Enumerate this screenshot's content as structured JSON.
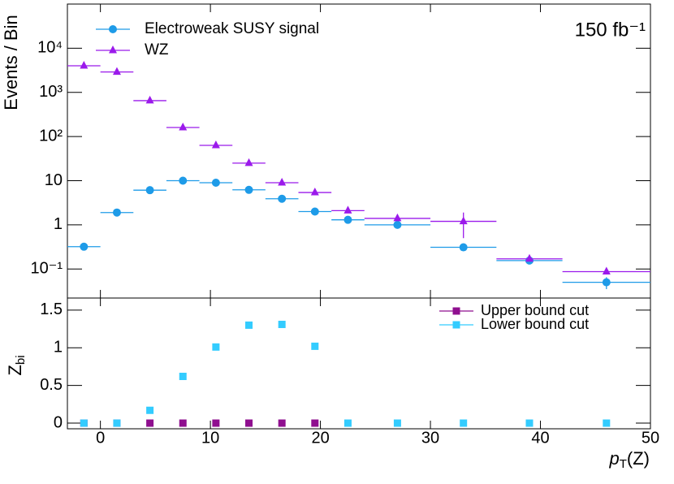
{
  "chart_data": [
    {
      "type": "scatter",
      "ylabel": "Events / Bin",
      "annotation": "150 fb⁻¹",
      "log_y": true,
      "legend": "upper left",
      "x": [
        -1.5,
        1.5,
        4.5,
        7.5,
        10.5,
        13.5,
        16.5,
        19.5,
        22.5,
        27,
        33,
        39,
        46
      ],
      "xerr": [
        1.5,
        1.5,
        1.5,
        1.5,
        1.5,
        1.5,
        1.5,
        1.5,
        1.5,
        3,
        3,
        3,
        4
      ],
      "xlim": [
        -3,
        50
      ],
      "xticks": [
        0,
        10,
        20,
        30,
        40,
        50
      ],
      "ylim": [
        0.022,
        100000
      ],
      "yticks": [
        {
          "value": 0.1,
          "label": "10⁻¹"
        },
        1,
        10,
        {
          "value": 100,
          "label": "10²"
        },
        {
          "value": 1000,
          "label": "10³"
        },
        {
          "value": 10000,
          "label": "10⁴"
        }
      ],
      "series": [
        {
          "name": "Electroweak SUSY signal",
          "color": "#1e9be8",
          "marker": "circle",
          "values": [
            0.32,
            1.9,
            6.1,
            10,
            9,
            6.2,
            3.9,
            2.0,
            1.3,
            1.0,
            0.31,
            0.155,
            0.05
          ],
          "yerr": [
            null,
            null,
            null,
            null,
            null,
            null,
            null,
            null,
            null,
            null,
            null,
            null,
            0.015
          ]
        },
        {
          "name": "WZ",
          "color": "#9b1aeb",
          "marker": "triangle",
          "values": [
            4000,
            2900,
            650,
            160,
            63,
            25,
            9,
            5.4,
            2.1,
            1.4,
            1.2,
            0.17,
            0.087
          ],
          "yerr": [
            null,
            null,
            null,
            null,
            null,
            null,
            null,
            null,
            null,
            null,
            0.7,
            null,
            null
          ]
        }
      ]
    },
    {
      "type": "scatter",
      "ylabel": [
        "Z",
        "bi"
      ],
      "xlabel": [
        "p",
        "T",
        "(Z)"
      ],
      "legend": "upper right",
      "x": [
        -1.5,
        1.5,
        4.5,
        7.5,
        10.5,
        13.5,
        16.5,
        19.5,
        22.5,
        27,
        33,
        39,
        46
      ],
      "xlim": [
        -3,
        50
      ],
      "xticks": [
        0,
        10,
        20,
        30,
        40,
        50
      ],
      "ylim": [
        -0.075,
        1.66
      ],
      "yticks": [
        0,
        0.5,
        1,
        1.5
      ],
      "series": [
        {
          "name": "Upper bound cut",
          "color": "#8f0f8f",
          "marker": "square",
          "values": [
            0,
            0,
            0,
            0,
            0,
            0,
            0,
            0,
            null,
            null,
            null,
            null,
            null
          ]
        },
        {
          "name": "Lower bound cut",
          "color": "#33ccff",
          "marker": "square",
          "values": [
            0,
            0,
            0.17,
            0.62,
            1.01,
            1.3,
            1.31,
            1.02,
            0,
            0,
            0,
            0,
            0
          ]
        }
      ]
    }
  ]
}
